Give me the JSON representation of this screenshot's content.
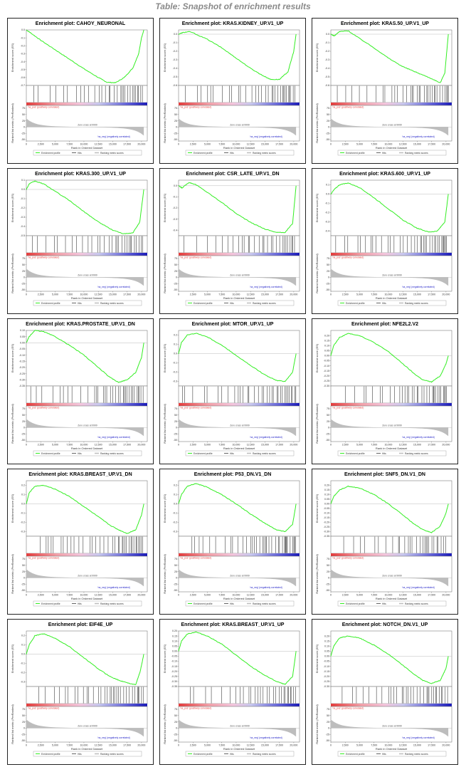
{
  "page": {
    "title": "Table: Snapshot of enrichment results"
  },
  "common": {
    "ylabel_es": "Enrichment score (ES)",
    "ylabel_rank": "Ranked list metric (PreRanked)",
    "xlabel": "Rank in Ordered Dataset",
    "pos_label": "'na_pos' (positively correlated)",
    "neg_label": "'na_neg' (negatively correlated)",
    "zero_cross": "Zero cross at 9999",
    "legend": [
      "Enrichment profile",
      "Hits",
      "Ranking metric scores"
    ],
    "rank_ticks": [
      "75",
      "50",
      "25",
      "0",
      "-25",
      "-50"
    ],
    "x_ticks": [
      "0",
      "2,500",
      "5,000",
      "7,500",
      "10,000",
      "12,500",
      "15,000",
      "17,500",
      "20,000"
    ],
    "colors": {
      "profile": "#33ee22",
      "hits": "#000000",
      "pos": "#e8413f",
      "neg": "#2121c8",
      "metric": "#bdbdbd"
    }
  },
  "chart_data": [
    {
      "type": "line",
      "title": "Enrichment plot: CAHOY_NEURONAL",
      "ylim": [
        -0.7,
        0.0
      ],
      "y_ticks": [
        "0.0",
        "-0.1",
        "-0.2",
        "-0.3",
        "-0.4",
        "-0.5",
        "-0.6",
        "-0.7"
      ],
      "x": [
        0,
        800,
        2500,
        5000,
        7500,
        10000,
        12500,
        14000,
        15500,
        17000,
        18500,
        19500,
        20000,
        20400
      ],
      "values": [
        0,
        -0.04,
        -0.13,
        -0.25,
        -0.37,
        -0.49,
        -0.6,
        -0.66,
        -0.665,
        -0.6,
        -0.48,
        -0.3,
        -0.1,
        0
      ]
    },
    {
      "type": "line",
      "title": "Enrichment plot: KRAS.KIDNEY_UP.V1_UP",
      "ylim": [
        -0.6,
        0.05
      ],
      "y_ticks": [
        "0.0",
        "-0.1",
        "-0.2",
        "-0.3",
        "-0.4",
        "-0.5",
        "-0.6"
      ],
      "x": [
        0,
        800,
        2000,
        5000,
        7500,
        10000,
        12500,
        14500,
        16000,
        17500,
        19000,
        20000,
        20400
      ],
      "values": [
        0,
        0.02,
        0.03,
        -0.06,
        -0.16,
        -0.28,
        -0.4,
        -0.48,
        -0.53,
        -0.53,
        -0.44,
        -0.2,
        0
      ]
    },
    {
      "type": "line",
      "title": "Enrichment plot: KRAS.50_UP.V1_UP",
      "ylim": [
        -0.6,
        0.05
      ],
      "y_ticks": [
        "0.0",
        "-0.1",
        "-0.2",
        "-0.3",
        "-0.4",
        "-0.5",
        "-0.6"
      ],
      "x": [
        0,
        600,
        1500,
        3000,
        5000,
        7500,
        10000,
        12500,
        15000,
        17500,
        19000,
        19800,
        20400
      ],
      "values": [
        0,
        -0.02,
        0.03,
        0.04,
        -0.05,
        -0.16,
        -0.28,
        -0.38,
        -0.45,
        -0.52,
        -0.57,
        -0.45,
        0
      ]
    },
    {
      "type": "line",
      "title": "Enrichment plot: KRAS.300_UP.V1_UP",
      "ylim": [
        -0.5,
        0.1
      ],
      "y_ticks": [
        "0.1",
        "0.0",
        "-0.1",
        "-0.2",
        "-0.3",
        "-0.4",
        "-0.5"
      ],
      "x": [
        0,
        500,
        1500,
        3000,
        5000,
        7500,
        10000,
        12500,
        15000,
        17000,
        18500,
        19700,
        20400
      ],
      "values": [
        0,
        0.06,
        0.09,
        0.06,
        -0.02,
        -0.12,
        -0.24,
        -0.35,
        -0.44,
        -0.48,
        -0.47,
        -0.35,
        0
      ]
    },
    {
      "type": "line",
      "title": "Enrichment plot: CSR_LATE_UP.V1_DN",
      "ylim": [
        -0.45,
        0.05
      ],
      "y_ticks": [
        "0.0",
        "-0.1",
        "-0.2",
        "-0.3",
        "-0.4"
      ],
      "x": [
        0,
        600,
        1800,
        3000,
        5000,
        7500,
        10000,
        12500,
        15000,
        17000,
        18500,
        19800,
        20400
      ],
      "values": [
        0,
        -0.02,
        0.03,
        0.01,
        -0.06,
        -0.15,
        -0.25,
        -0.33,
        -0.39,
        -0.42,
        -0.42,
        -0.34,
        0
      ]
    },
    {
      "type": "line",
      "title": "Enrichment plot: KRAS.600_UP.V1_UP",
      "ylim": [
        -0.45,
        0.15
      ],
      "y_ticks": [
        "0.1",
        "0.0",
        "-0.1",
        "-0.2",
        "-0.3",
        "-0.4"
      ],
      "x": [
        0,
        600,
        1500,
        3000,
        5000,
        7500,
        10000,
        12500,
        15000,
        17000,
        18500,
        19800,
        20400
      ],
      "values": [
        0,
        0.05,
        0.1,
        0.12,
        0.07,
        -0.04,
        -0.16,
        -0.28,
        -0.37,
        -0.41,
        -0.4,
        -0.3,
        0
      ]
    },
    {
      "type": "line",
      "title": "Enrichment plot: KRAS.PROSTATE_UP.V1_DN",
      "ylim": [
        -0.35,
        0.1
      ],
      "y_ticks": [
        "0.10",
        "0.05",
        "0.00",
        "-0.05",
        "-0.10",
        "-0.15",
        "-0.20",
        "-0.25",
        "-0.30",
        "-0.35"
      ],
      "x": [
        0,
        500,
        1500,
        3000,
        5000,
        7500,
        10000,
        12500,
        14500,
        16000,
        17500,
        19000,
        20000,
        20400
      ],
      "values": [
        0,
        0.05,
        0.1,
        0.09,
        0.05,
        -0.02,
        -0.1,
        -0.2,
        -0.28,
        -0.32,
        -0.3,
        -0.24,
        -0.12,
        0
      ]
    },
    {
      "type": "line",
      "title": "Enrichment plot: MTOR_UP.V1_UP",
      "ylim": [
        -0.35,
        0.25
      ],
      "y_ticks": [
        "0.2",
        "0.1",
        "0.0",
        "-0.1",
        "-0.2",
        "-0.3"
      ],
      "x": [
        0,
        500,
        1500,
        3000,
        5000,
        7500,
        10000,
        12500,
        15000,
        17000,
        18500,
        19800,
        20400
      ],
      "values": [
        0,
        0.12,
        0.2,
        0.22,
        0.18,
        0.09,
        -0.02,
        -0.13,
        -0.23,
        -0.29,
        -0.3,
        -0.2,
        0
      ]
    },
    {
      "type": "line",
      "title": "Enrichment plot: NFE2L2.V2",
      "ylim": [
        -0.3,
        0.25
      ],
      "y_ticks": [
        "0.20",
        "0.15",
        "0.10",
        "0.05",
        "0.00",
        "-0.05",
        "-0.10",
        "-0.15",
        "-0.20",
        "-0.25",
        "-0.30"
      ],
      "x": [
        0,
        500,
        1500,
        3000,
        5000,
        7500,
        10000,
        12500,
        14500,
        16000,
        17500,
        19000,
        20000,
        20400
      ],
      "values": [
        0,
        0.1,
        0.18,
        0.22,
        0.2,
        0.13,
        0.04,
        -0.08,
        -0.18,
        -0.24,
        -0.26,
        -0.2,
        -0.08,
        0
      ]
    },
    {
      "type": "line",
      "title": "Enrichment plot: KRAS.BREAST_UP.V1_DN",
      "ylim": [
        -0.35,
        0.25
      ],
      "y_ticks": [
        "0.2",
        "0.1",
        "0.0",
        "-0.1",
        "-0.2",
        "-0.3"
      ],
      "x": [
        0,
        500,
        1500,
        3000,
        5000,
        7500,
        10000,
        12500,
        14500,
        16000,
        17500,
        19000,
        20000,
        20400
      ],
      "values": [
        0,
        0.12,
        0.19,
        0.2,
        0.16,
        0.08,
        -0.03,
        -0.14,
        -0.23,
        -0.28,
        -0.32,
        -0.28,
        -0.12,
        0
      ]
    },
    {
      "type": "line",
      "title": "Enrichment plot: P53_DN.V1_DN",
      "ylim": [
        -0.35,
        0.25
      ],
      "y_ticks": [
        "0.2",
        "0.1",
        "0.0",
        "-0.1",
        "-0.2",
        "-0.3"
      ],
      "x": [
        0,
        500,
        1500,
        3000,
        5000,
        7500,
        10000,
        12500,
        15000,
        17000,
        18500,
        19800,
        20400
      ],
      "values": [
        0,
        0.1,
        0.19,
        0.22,
        0.18,
        0.1,
        0.0,
        -0.11,
        -0.21,
        -0.28,
        -0.3,
        -0.22,
        0
      ]
    },
    {
      "type": "line",
      "title": "Enrichment plot: SNF5_DN.V1_DN",
      "ylim": [
        -0.35,
        0.25
      ],
      "y_ticks": [
        "0.20",
        "0.15",
        "0.10",
        "0.05",
        "0.00",
        "-0.05",
        "-0.10",
        "-0.15",
        "-0.20",
        "-0.25",
        "-0.30",
        "-0.35"
      ],
      "x": [
        0,
        500,
        1500,
        3000,
        5000,
        7500,
        10000,
        12500,
        14500,
        16000,
        17500,
        19000,
        20000,
        20400
      ],
      "values": [
        0,
        0.08,
        0.15,
        0.19,
        0.17,
        0.1,
        0.0,
        -0.12,
        -0.22,
        -0.28,
        -0.31,
        -0.24,
        -0.1,
        0
      ]
    },
    {
      "type": "line",
      "title": "Enrichment plot: EIF4E_UP",
      "ylim": [
        -0.35,
        0.25
      ],
      "y_ticks": [
        "0.2",
        "0.1",
        "0.0",
        "-0.1",
        "-0.2",
        "-0.3"
      ],
      "x": [
        0,
        500,
        1500,
        3000,
        5000,
        7500,
        10000,
        12500,
        14500,
        16000,
        17500,
        19000,
        19800,
        20400
      ],
      "values": [
        0,
        0.1,
        0.2,
        0.22,
        0.17,
        0.08,
        -0.04,
        -0.16,
        -0.24,
        -0.28,
        -0.31,
        -0.33,
        -0.18,
        0
      ]
    },
    {
      "type": "line",
      "title": "Enrichment plot: KRAS.BREAST_UP.V1_UP",
      "ylim": [
        -0.35,
        0.2
      ],
      "y_ticks": [
        "0.20",
        "0.15",
        "0.10",
        "0.05",
        "0.00",
        "-0.05",
        "-0.10",
        "-0.15",
        "-0.20",
        "-0.25",
        "-0.30",
        "-0.35"
      ],
      "x": [
        0,
        500,
        1500,
        3000,
        5000,
        7500,
        10000,
        12500,
        15000,
        17000,
        18500,
        19800,
        20400
      ],
      "values": [
        0,
        0.1,
        0.17,
        0.19,
        0.15,
        0.07,
        -0.04,
        -0.15,
        -0.24,
        -0.3,
        -0.33,
        -0.25,
        0
      ]
    },
    {
      "type": "line",
      "title": "Enrichment plot: NOTCH_DN.V1_UP",
      "ylim": [
        -0.3,
        0.25
      ],
      "y_ticks": [
        "0.20",
        "0.15",
        "0.10",
        "0.05",
        "0.00",
        "-0.05",
        "-0.10",
        "-0.15",
        "-0.20",
        "-0.25",
        "-0.30"
      ],
      "x": [
        0,
        500,
        1500,
        3000,
        5000,
        7500,
        10000,
        12500,
        14500,
        16000,
        17500,
        19000,
        20000,
        20400
      ],
      "values": [
        0,
        0.1,
        0.18,
        0.2,
        0.18,
        0.11,
        0.02,
        -0.09,
        -0.18,
        -0.24,
        -0.27,
        -0.24,
        -0.12,
        0
      ]
    }
  ]
}
